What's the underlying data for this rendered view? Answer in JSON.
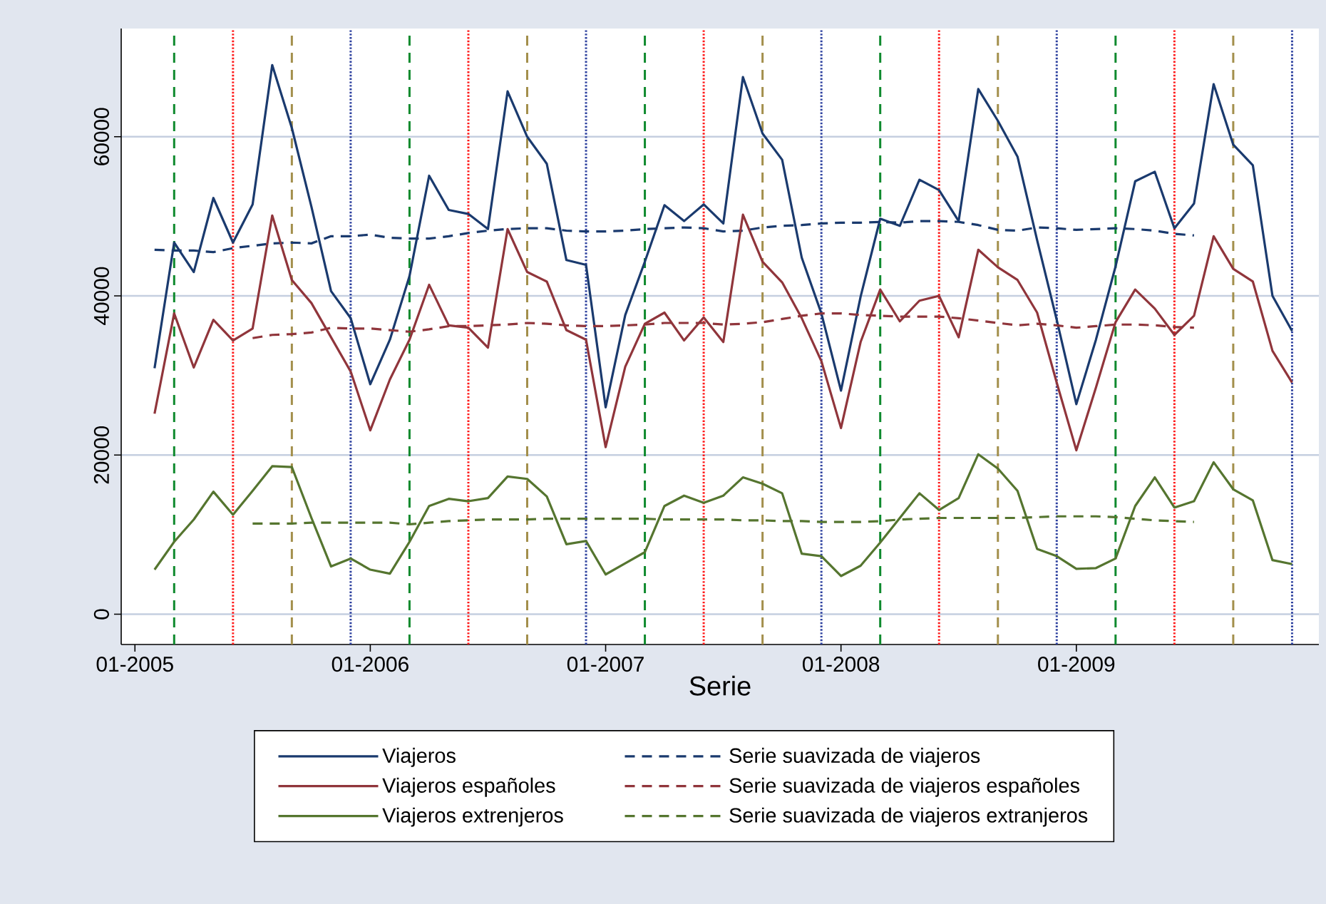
{
  "chart_data": {
    "type": "line",
    "xlabel": "Serie",
    "x": [
      "2005-02",
      "2005-03",
      "2005-04",
      "2005-05",
      "2005-06",
      "2005-07",
      "2005-08",
      "2005-09",
      "2005-10",
      "2005-11",
      "2005-12",
      "2006-01",
      "2006-02",
      "2006-03",
      "2006-04",
      "2006-05",
      "2006-06",
      "2006-07",
      "2006-08",
      "2006-09",
      "2006-10",
      "2006-11",
      "2006-12",
      "2007-01",
      "2007-02",
      "2007-03",
      "2007-04",
      "2007-05",
      "2007-06",
      "2007-07",
      "2007-08",
      "2007-09",
      "2007-10",
      "2007-11",
      "2007-12",
      "2008-01",
      "2008-02",
      "2008-03",
      "2008-04",
      "2008-05",
      "2008-06",
      "2008-07",
      "2008-08",
      "2008-09",
      "2008-10",
      "2008-11",
      "2008-12",
      "2009-01",
      "2009-02",
      "2009-03",
      "2009-04",
      "2009-05",
      "2009-06",
      "2009-07",
      "2009-08",
      "2009-09",
      "2009-10",
      "2009-11",
      "2009-12"
    ],
    "series": [
      {
        "name": "Viajeros",
        "color": "#1a3a6e",
        "line_style": "solid",
        "values": [
          30900,
          46700,
          43000,
          52300,
          46700,
          51500,
          69000,
          61100,
          51200,
          40600,
          37200,
          28900,
          34500,
          42500,
          55100,
          50800,
          50300,
          48400,
          65700,
          60000,
          56600,
          44500,
          43900,
          26000,
          37600,
          44300,
          51400,
          49400,
          51500,
          49100,
          67500,
          60400,
          57100,
          44800,
          37800,
          28100,
          39900,
          49700,
          48800,
          54600,
          53300,
          49400,
          66000,
          62000,
          57500,
          47000,
          37000,
          26400,
          34500,
          43700,
          54400,
          55600,
          48500,
          51600,
          66600,
          59000,
          56400,
          40000,
          35600
        ]
      },
      {
        "name": "Serie suavizada de viajeros",
        "color": "#1a3a6e",
        "line_style": "dashed",
        "x": [
          "2005-02",
          "2005-03",
          "2005-04",
          "2005-05",
          "2005-06",
          "2005-07",
          "2005-08",
          "2005-09",
          "2005-10",
          "2005-11",
          "2005-12",
          "2006-01",
          "2006-02",
          "2006-03",
          "2006-04",
          "2006-05",
          "2006-06",
          "2006-07",
          "2006-08",
          "2006-09",
          "2006-10",
          "2006-11",
          "2006-12",
          "2007-01",
          "2007-02",
          "2007-03",
          "2007-04",
          "2007-05",
          "2007-06",
          "2007-07",
          "2007-08",
          "2007-09",
          "2007-10",
          "2007-11",
          "2007-12",
          "2008-01",
          "2008-02",
          "2008-03",
          "2008-04",
          "2008-05",
          "2008-06",
          "2008-07",
          "2008-08",
          "2008-09",
          "2008-10",
          "2008-11",
          "2008-12",
          "2009-01",
          "2009-02",
          "2009-03",
          "2009-04",
          "2009-05",
          "2009-06",
          "2009-07"
        ],
        "values": [
          45800,
          45700,
          45700,
          45500,
          46000,
          46300,
          46600,
          46700,
          46600,
          47500,
          47500,
          47700,
          47300,
          47200,
          47200,
          47500,
          47900,
          48200,
          48400,
          48500,
          48500,
          48200,
          48100,
          48100,
          48200,
          48400,
          48500,
          48600,
          48500,
          48100,
          48200,
          48600,
          48800,
          48900,
          49100,
          49200,
          49200,
          49300,
          49200,
          49400,
          49400,
          49300,
          48900,
          48300,
          48200,
          48600,
          48500,
          48300,
          48400,
          48500,
          48400,
          48200,
          47800,
          47600
        ]
      },
      {
        "name": "Viajeros españoles",
        "color": "#90353b",
        "line_style": "solid",
        "values": [
          25200,
          37800,
          31000,
          37000,
          34400,
          35900,
          50100,
          42000,
          39100,
          34800,
          30500,
          23100,
          29500,
          34500,
          41400,
          36300,
          36000,
          33500,
          48400,
          43000,
          41800,
          35700,
          34500,
          21000,
          31100,
          36500,
          37900,
          34400,
          37300,
          34200,
          50200,
          44300,
          41700,
          37200,
          31800,
          23400,
          34200,
          40800,
          36800,
          39400,
          40000,
          34800,
          45800,
          43600,
          42000,
          37900,
          29100,
          20600,
          28500,
          36700,
          40800,
          38400,
          35100,
          37500,
          47500,
          43400,
          41800,
          33100,
          29100
        ]
      },
      {
        "name": "Serie suavizada de viajeros españoles",
        "color": "#90353b",
        "line_style": "dashed",
        "x": [
          "2005-07",
          "2005-08",
          "2005-09",
          "2005-10",
          "2005-11",
          "2005-12",
          "2006-01",
          "2006-02",
          "2006-03",
          "2006-04",
          "2006-05",
          "2006-06",
          "2006-07",
          "2006-08",
          "2006-09",
          "2006-10",
          "2006-11",
          "2006-12",
          "2007-01",
          "2007-02",
          "2007-03",
          "2007-04",
          "2007-05",
          "2007-06",
          "2007-07",
          "2007-08",
          "2007-09",
          "2007-10",
          "2007-11",
          "2007-12",
          "2008-01",
          "2008-02",
          "2008-03",
          "2008-04",
          "2008-05",
          "2008-06",
          "2008-07",
          "2008-08",
          "2008-09",
          "2008-10",
          "2008-11",
          "2008-12",
          "2009-01",
          "2009-02",
          "2009-03",
          "2009-04",
          "2009-05",
          "2009-06",
          "2009-07"
        ],
        "values": [
          34700,
          35100,
          35200,
          35400,
          36000,
          35900,
          35900,
          35700,
          35500,
          35800,
          36200,
          36200,
          36300,
          36400,
          36600,
          36500,
          36300,
          36200,
          36200,
          36300,
          36400,
          36600,
          36600,
          36600,
          36400,
          36500,
          36700,
          37100,
          37500,
          37800,
          37800,
          37600,
          37500,
          37400,
          37400,
          37400,
          37200,
          36900,
          36600,
          36300,
          36500,
          36300,
          36000,
          36200,
          36400,
          36400,
          36300,
          36100,
          36000
        ]
      },
      {
        "name": "Viajeros extrenjeros",
        "color": "#55752f",
        "line_style": "solid",
        "values": [
          5600,
          9100,
          11900,
          15400,
          12500,
          15500,
          18600,
          18500,
          12100,
          6000,
          7000,
          5600,
          5100,
          9100,
          13600,
          14500,
          14200,
          14600,
          17300,
          17000,
          14800,
          8800,
          9200,
          5000,
          6400,
          7800,
          13600,
          14900,
          14000,
          14900,
          17200,
          16400,
          15200,
          7600,
          7300,
          4800,
          6100,
          9000,
          12100,
          15200,
          13100,
          14600,
          20100,
          18300,
          15500,
          8200,
          7300,
          5700,
          5800,
          7000,
          13600,
          17200,
          13400,
          14200,
          19100,
          15700,
          14300,
          6800,
          6300
        ]
      },
      {
        "name": "Serie suavizada de viajeros extranjeros",
        "color": "#55752f",
        "line_style": "dashed",
        "x": [
          "2005-07",
          "2005-08",
          "2005-09",
          "2005-10",
          "2005-11",
          "2005-12",
          "2006-01",
          "2006-02",
          "2006-03",
          "2006-04",
          "2006-05",
          "2006-06",
          "2006-07",
          "2006-08",
          "2006-09",
          "2006-10",
          "2006-11",
          "2006-12",
          "2007-01",
          "2007-02",
          "2007-03",
          "2007-04",
          "2007-05",
          "2007-06",
          "2007-07",
          "2007-08",
          "2007-09",
          "2007-10",
          "2007-11",
          "2007-12",
          "2008-01",
          "2008-02",
          "2008-03",
          "2008-04",
          "2008-05",
          "2008-06",
          "2008-07",
          "2008-08",
          "2008-09",
          "2008-10",
          "2008-11",
          "2008-12",
          "2009-01",
          "2009-02",
          "2009-03",
          "2009-04",
          "2009-05",
          "2009-06",
          "2009-07"
        ],
        "values": [
          11400,
          11400,
          11400,
          11500,
          11500,
          11500,
          11500,
          11500,
          11300,
          11500,
          11700,
          11800,
          11900,
          11900,
          11900,
          12000,
          12000,
          12000,
          12000,
          12000,
          12000,
          11900,
          11900,
          11900,
          11900,
          11800,
          11800,
          11700,
          11700,
          11600,
          11600,
          11600,
          11700,
          11900,
          12000,
          12100,
          12100,
          12100,
          12100,
          12100,
          12200,
          12300,
          12300,
          12300,
          12200,
          12000,
          11800,
          11700,
          11600
        ]
      }
    ],
    "xlim": [
      "2004-12-10",
      "2010-01-12"
    ],
    "xticks": [
      {
        "value": "2005-01",
        "label": "01-2005"
      },
      {
        "value": "2006-01",
        "label": "01-2006"
      },
      {
        "value": "2007-01",
        "label": "01-2007"
      },
      {
        "value": "2008-01",
        "label": "01-2008"
      },
      {
        "value": "2009-01",
        "label": "01-2009"
      }
    ],
    "ylim": [
      -3800,
      73600
    ],
    "yticks": [
      0,
      20000,
      40000,
      60000
    ],
    "ref_lines": [
      {
        "axis": "x",
        "value": "2005-03",
        "color": "#0f8a2e",
        "line_style": "dashed"
      },
      {
        "axis": "x",
        "value": "2005-06",
        "color": "#ff1a1a",
        "line_style": "dotted"
      },
      {
        "axis": "x",
        "value": "2005-09",
        "color": "#a38f4c",
        "line_style": "dashed"
      },
      {
        "axis": "x",
        "value": "2005-12",
        "color": "#2b3f9e",
        "line_style": "dotted"
      },
      {
        "axis": "x",
        "value": "2006-03",
        "color": "#0f8a2e",
        "line_style": "dashed"
      },
      {
        "axis": "x",
        "value": "2006-06",
        "color": "#ff1a1a",
        "line_style": "dotted"
      },
      {
        "axis": "x",
        "value": "2006-09",
        "color": "#a38f4c",
        "line_style": "dashed"
      },
      {
        "axis": "x",
        "value": "2006-12",
        "color": "#2b3f9e",
        "line_style": "dotted"
      },
      {
        "axis": "x",
        "value": "2007-03",
        "color": "#0f8a2e",
        "line_style": "dashed"
      },
      {
        "axis": "x",
        "value": "2007-06",
        "color": "#ff1a1a",
        "line_style": "dotted"
      },
      {
        "axis": "x",
        "value": "2007-09",
        "color": "#a38f4c",
        "line_style": "dashed"
      },
      {
        "axis": "x",
        "value": "2007-12",
        "color": "#2b3f9e",
        "line_style": "dotted"
      },
      {
        "axis": "x",
        "value": "2008-03",
        "color": "#0f8a2e",
        "line_style": "dashed"
      },
      {
        "axis": "x",
        "value": "2008-06",
        "color": "#ff1a1a",
        "line_style": "dotted"
      },
      {
        "axis": "x",
        "value": "2008-09",
        "color": "#a38f4c",
        "line_style": "dashed"
      },
      {
        "axis": "x",
        "value": "2008-12",
        "color": "#2b3f9e",
        "line_style": "dotted"
      },
      {
        "axis": "x",
        "value": "2009-03",
        "color": "#0f8a2e",
        "line_style": "dashed"
      },
      {
        "axis": "x",
        "value": "2009-06",
        "color": "#ff1a1a",
        "line_style": "dotted"
      },
      {
        "axis": "x",
        "value": "2009-09",
        "color": "#a38f4c",
        "line_style": "dashed"
      },
      {
        "axis": "x",
        "value": "2009-12",
        "color": "#2b3f9e",
        "line_style": "dotted"
      }
    ],
    "grid": "y",
    "legend": "bottom"
  }
}
